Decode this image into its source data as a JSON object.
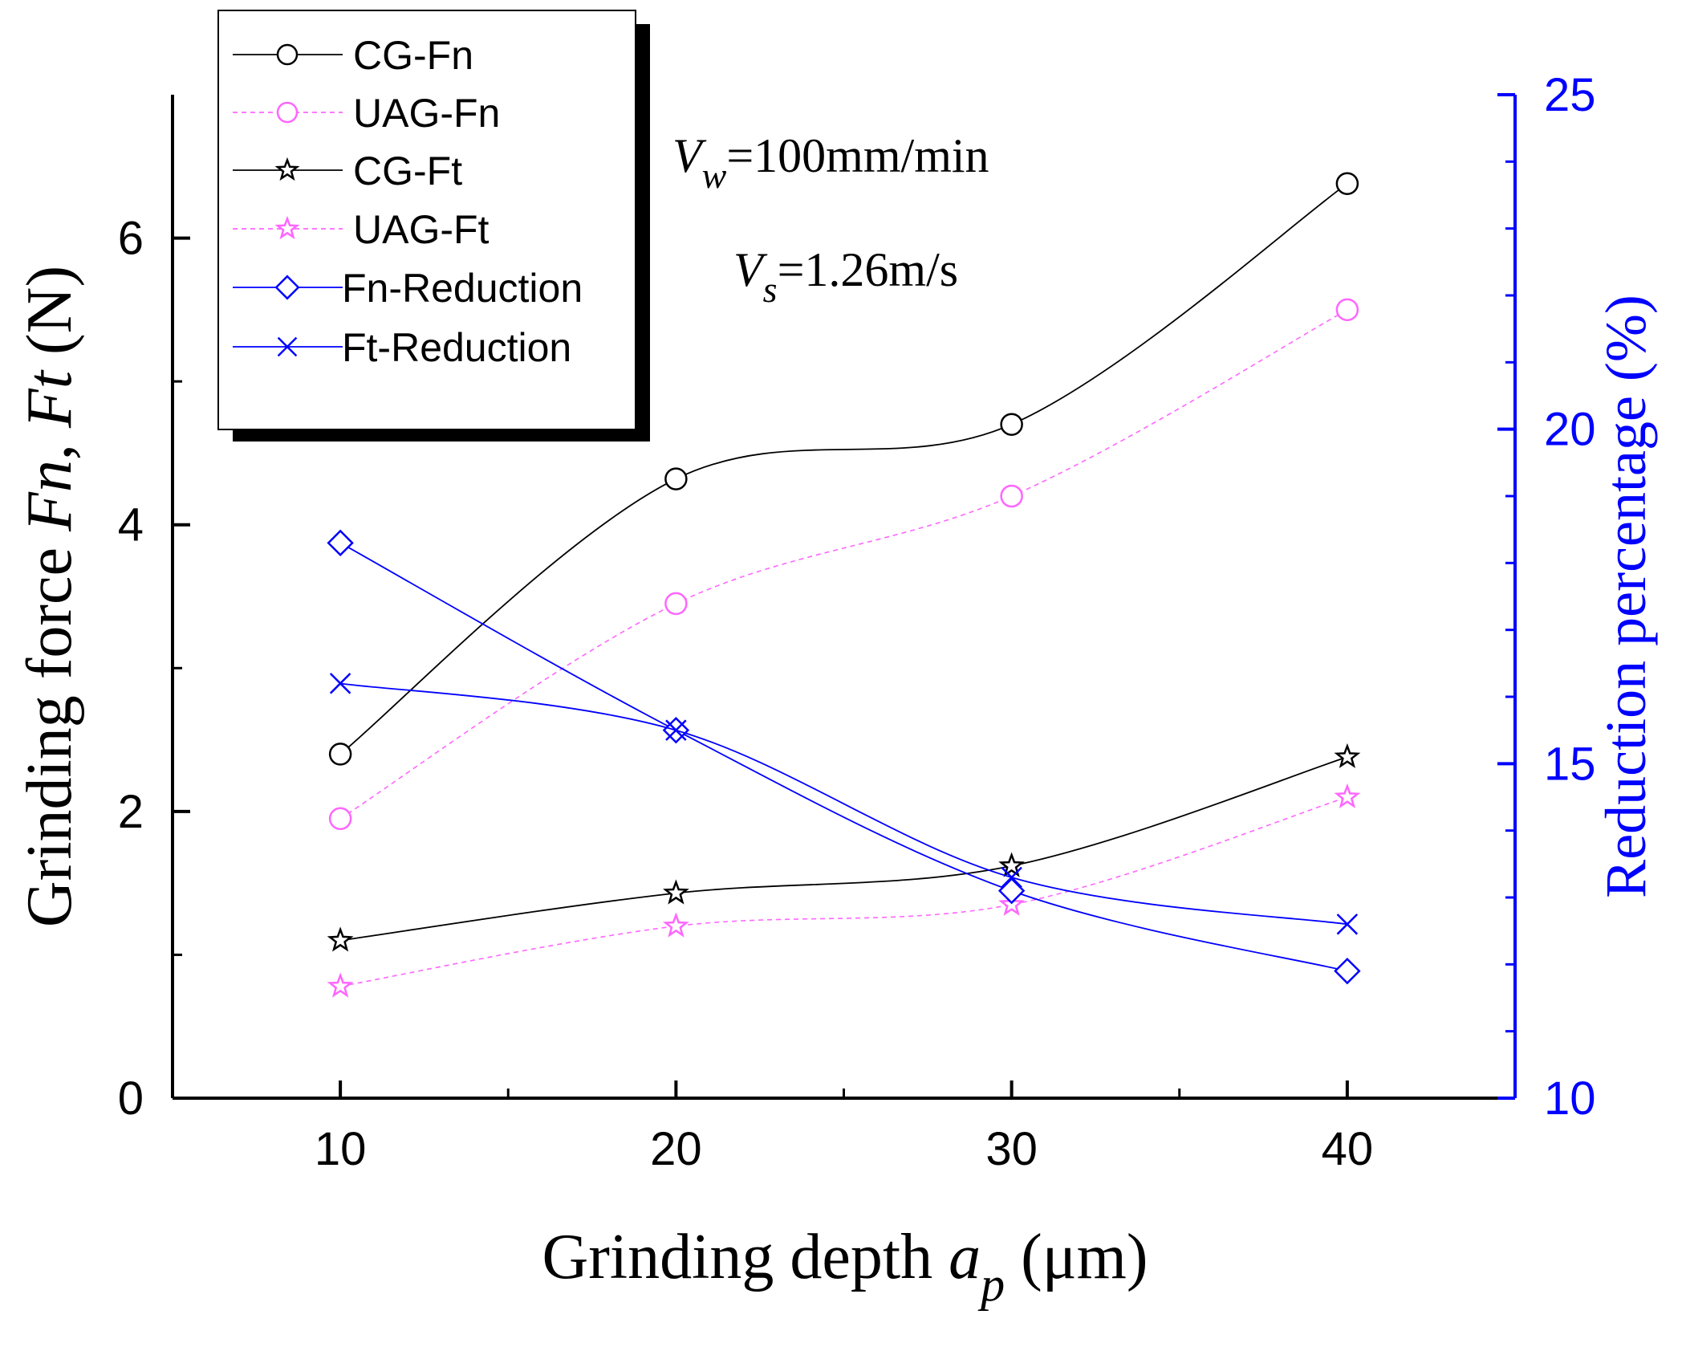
{
  "chart_data": {
    "type": "line",
    "x": [
      10,
      20,
      30,
      40
    ],
    "xlabel": {
      "main": "Grinding depth ",
      "var": "a",
      "sub": "p",
      "unit": " (μm)"
    },
    "xlim": [
      5,
      45
    ],
    "xticks": [
      10,
      20,
      30,
      40
    ],
    "ylabel_left": {
      "prefix": "Grinding force ",
      "v1": "Fn",
      "sep": ", ",
      "v2": "Ft",
      "unit": " (N)"
    },
    "ylim_left": [
      0,
      7
    ],
    "yticks_left": [
      0,
      2,
      4,
      6
    ],
    "ylabel_right": "Reduction percentage (%)",
    "ylim_right": [
      10,
      25
    ],
    "yticks_right": [
      10,
      15,
      20,
      25
    ],
    "series": [
      {
        "name": "CG-Fn",
        "axis": "left",
        "values": [
          2.4,
          4.32,
          4.7,
          6.38
        ],
        "marker": "circle",
        "color": "#000000",
        "dash": false
      },
      {
        "name": "UAG-Fn",
        "axis": "left",
        "values": [
          1.95,
          3.45,
          4.2,
          5.5
        ],
        "marker": "circle",
        "color": "#ff66ff",
        "dash": true
      },
      {
        "name": "CG-Ft",
        "axis": "left",
        "values": [
          1.1,
          1.43,
          1.62,
          2.38
        ],
        "marker": "star",
        "color": "#000000",
        "dash": false
      },
      {
        "name": "UAG-Ft",
        "axis": "left",
        "values": [
          0.78,
          1.2,
          1.35,
          2.1
        ],
        "marker": "star",
        "color": "#ff66ff",
        "dash": true
      },
      {
        "name": "Fn-Reduction",
        "axis": "right",
        "values": [
          18.3,
          15.5,
          13.1,
          11.9
        ],
        "marker": "diamond",
        "color": "#0000ff",
        "dash": false
      },
      {
        "name": "Ft-Reduction",
        "axis": "right",
        "values": [
          16.2,
          15.5,
          13.3,
          12.6
        ],
        "marker": "cross",
        "color": "#0000ff",
        "dash": false
      }
    ],
    "annotations": [
      {
        "var": "V",
        "sub": "w",
        "rest": "=100mm/min"
      },
      {
        "var": "V",
        "sub": "s",
        "rest": "=1.26m/s"
      }
    ],
    "legend": "top-left"
  },
  "colors": {
    "axis": "#000000",
    "right_axis": "#0000ff"
  }
}
